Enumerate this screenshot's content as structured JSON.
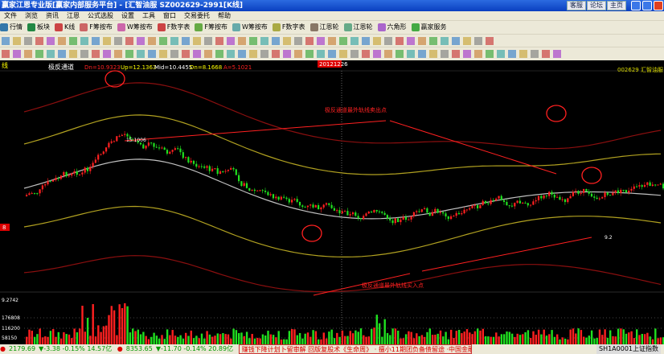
{
  "window": {
    "title": "赢家江恩专业版[赢家内部服务平台] - [汇智油服 SZ002629-2991[K线]",
    "buttons": [
      "客服",
      "论坛",
      "主页"
    ]
  },
  "menu": [
    "文件",
    "浏览",
    "资讯",
    "江恩",
    "公式选股",
    "设置",
    "工具",
    "窗口",
    "交易委托",
    "帮助"
  ],
  "toolbar": [
    {
      "label": "行情",
      "color": "#37a"
    },
    {
      "label": "板块",
      "color": "#284"
    },
    {
      "label": "K线",
      "color": "#c44"
    },
    {
      "label": "F筹按布",
      "color": "#c66"
    },
    {
      "label": "W筹按布",
      "color": "#c6a"
    },
    {
      "label": "F数字表",
      "color": "#c44"
    },
    {
      "label": "F筹按布",
      "color": "#6a4"
    },
    {
      "label": "W筹按布",
      "color": "#6aa"
    },
    {
      "label": "F数字表",
      "color": "#aa4"
    },
    {
      "label": "江恩轮",
      "color": "#876"
    },
    {
      "label": "江恩轮",
      "color": "#6a8"
    },
    {
      "label": "六角形",
      "color": "#a6c"
    },
    {
      "label": "赢家服务",
      "color": "#4a4"
    }
  ],
  "chart": {
    "period_label": "线",
    "indicator": "极反通道",
    "dn": "Dn=10.9323",
    "up": "Up=12.1363",
    "mid": "Mid=10.4455",
    "dn2": "Dn=8.1668",
    "a": "A=5.1021",
    "date_marker": "20121226",
    "stock": "002629 汇智油服",
    "high_label": "15.1006",
    "low_label": "9.2",
    "sell_note": "极反通道最外轨线卖出点",
    "buy_note": "极反通道最外轨线买入点",
    "price_tag": "8",
    "volume_top": "9.2742",
    "vol_ticks": [
      "176808",
      "116200",
      "58150"
    ],
    "colors": {
      "up": "#ff2020",
      "down": "#20e020",
      "outer": "#8a0f0f",
      "inner": "#b0a020",
      "mid": "#c0c0c0",
      "annot": "#ff2020"
    }
  },
  "status": {
    "sh": "2179.69",
    "sh_chg": "▼-3.38 -0.15% 14.57亿",
    "sz": "8353.65",
    "sz_chg": "▼-11.70 -0.14% 20.89亿",
    "marquee": "赚钱下降计划卜留审解 回版复股术《生命周》 · 擅小11期团负备债留途 ·中国金融外籍回问的了 · 游戏中个股投安",
    "index": "SH1A0001上证指数"
  }
}
